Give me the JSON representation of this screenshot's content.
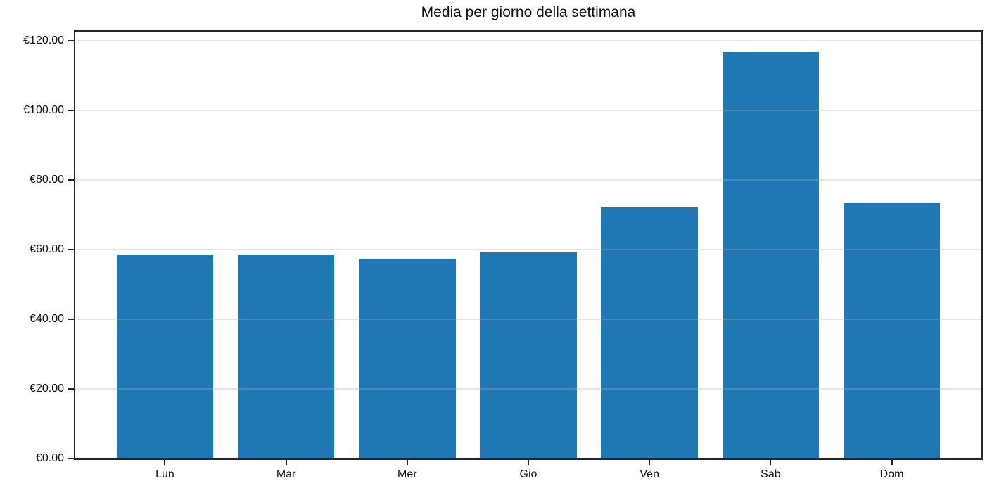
{
  "figure": {
    "background_color": "#ffffff",
    "text_color": "#111111"
  },
  "chart_data": {
    "type": "bar",
    "title": "Media per giorno della settimana",
    "xlabel": "",
    "ylabel": "",
    "categories": [
      "Lun",
      "Mar",
      "Mer",
      "Gio",
      "Ven",
      "Sab",
      "Dom"
    ],
    "values": [
      58.6,
      58.6,
      57.4,
      59.2,
      72.2,
      116.8,
      73.5
    ],
    "currency": "EUR",
    "ytick_values": [
      0,
      20,
      40,
      60,
      80,
      100,
      120
    ],
    "ytick_labels": [
      "€0.00",
      "€20.00",
      "€40.00",
      "€60.00",
      "€80.00",
      "€100.00",
      "€120.00"
    ],
    "ylim": [
      0,
      122.6
    ],
    "xlim": [
      -0.74,
      6.74
    ],
    "bar_width": 0.8,
    "bar_color": "#1f77b4",
    "grid": true,
    "grid_color": "#b0b0b0",
    "grid_alpha": 0.3,
    "grid_above_bars": true,
    "spine_color": "#262626",
    "legend_position": "none"
  }
}
